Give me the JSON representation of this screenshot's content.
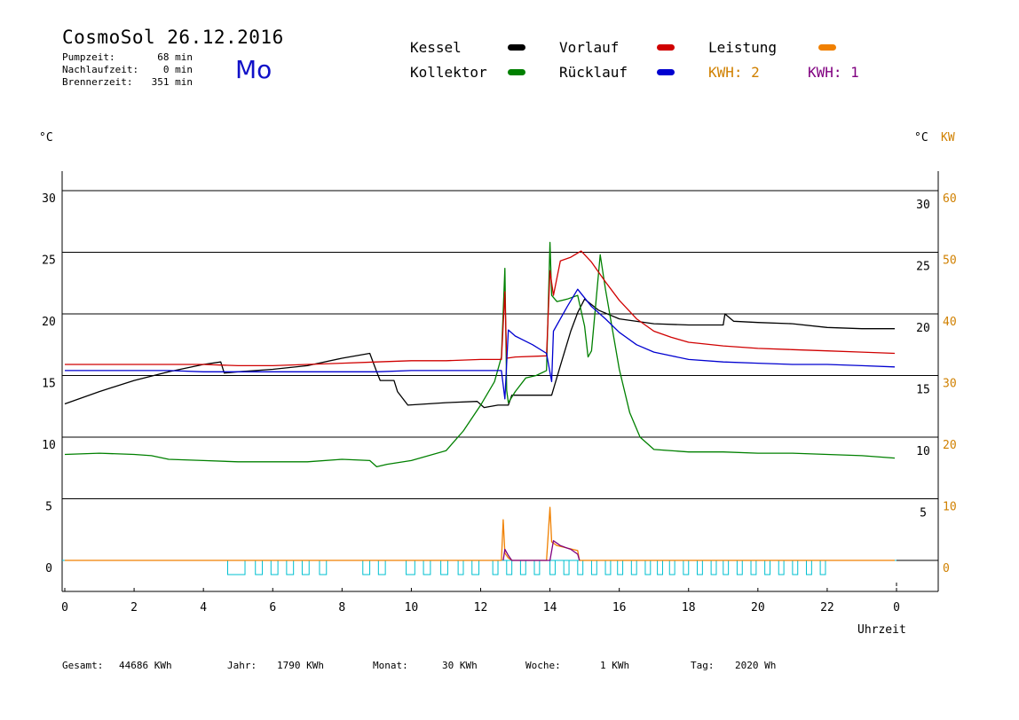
{
  "header": {
    "title": "CosmoSol 26.12.2016",
    "day": "Mo",
    "stats": [
      {
        "label": "Pumpzeit:",
        "value": "68 min"
      },
      {
        "label": "Nachlaufzeit:",
        "value": "0 min"
      },
      {
        "label": "Brennerzeit:",
        "value": "351 min"
      }
    ]
  },
  "legend": {
    "kessel": "Kessel",
    "kollektor": "Kollektor",
    "vorlauf": "Vorlauf",
    "ruecklauf": "Rücklauf",
    "leistung": "Leistung",
    "kwh2": "KWH: 2",
    "kwh1": "KWH: 1"
  },
  "axes": {
    "left_unit": "°C",
    "right_unit_c": "°C",
    "right_unit_kw": "KW",
    "xlabel": "Uhrzeit"
  },
  "colors": {
    "kessel": "#000000",
    "kollektor": "#008000",
    "vorlauf": "#d00000",
    "ruecklauf": "#0000d0",
    "leistung": "#f08000",
    "kwh1": "#800080",
    "pump": "#00c0d0",
    "kw_axis": "#d08000"
  },
  "footer": [
    {
      "label": "Gesamt:",
      "value": "44686 KWh"
    },
    {
      "label": "Jahr:",
      "value": "1790 KWh"
    },
    {
      "label": "Monat:",
      "value": "30 KWh"
    },
    {
      "label": "Woche:",
      "value": "1 KWh"
    },
    {
      "label": "Tag:",
      "value": "2020 Wh"
    }
  ],
  "chart_data": {
    "type": "line",
    "xlabel": "Uhrzeit",
    "ylabel": "°C",
    "xlim": [
      0,
      24
    ],
    "ylim": [
      -2.5,
      33
    ],
    "x_ticks": [
      {
        "v": 0,
        "l": "0"
      },
      {
        "v": 2,
        "l": "2"
      },
      {
        "v": 4,
        "l": "4"
      },
      {
        "v": 6,
        "l": "6"
      },
      {
        "v": 8,
        "l": "8"
      },
      {
        "v": 10,
        "l": "10"
      },
      {
        "v": 12,
        "l": "12"
      },
      {
        "v": 14,
        "l": "14"
      },
      {
        "v": 16,
        "l": "16"
      },
      {
        "v": 18,
        "l": "18"
      },
      {
        "v": 20,
        "l": "20"
      },
      {
        "v": 22,
        "l": "22"
      },
      {
        "v": 24,
        "l": "0"
      }
    ],
    "y_ticks_left": [
      {
        "v": 0,
        "l": "0"
      },
      {
        "v": 5,
        "l": "5"
      },
      {
        "v": 10,
        "l": "10"
      },
      {
        "v": 15,
        "l": "15"
      },
      {
        "v": 20,
        "l": "20"
      },
      {
        "v": 25,
        "l": "25"
      },
      {
        "v": 30,
        "l": "30"
      }
    ],
    "y_ticks_right_c": [
      {
        "v": 5,
        "l": "5"
      },
      {
        "v": 10,
        "l": "10"
      },
      {
        "v": 15,
        "l": "15"
      },
      {
        "v": 20,
        "l": "20"
      },
      {
        "v": 25,
        "l": "25"
      },
      {
        "v": 30,
        "l": "30"
      }
    ],
    "y_ticks_right_kw": [
      {
        "v": 0,
        "l": "0"
      },
      {
        "v": 5,
        "l": "10"
      },
      {
        "v": 10,
        "l": "20"
      },
      {
        "v": 15,
        "l": "30"
      },
      {
        "v": 20,
        "l": "40"
      },
      {
        "v": 25,
        "l": "50"
      },
      {
        "v": 30,
        "l": "60"
      }
    ],
    "gridlines": [
      0,
      5,
      10,
      15,
      20,
      25,
      30
    ],
    "series": [
      {
        "name": "Kessel",
        "color": "#000000",
        "points": [
          [
            0,
            12.7
          ],
          [
            1,
            13.7
          ],
          [
            2,
            14.6
          ],
          [
            3,
            15.3
          ],
          [
            4,
            15.9
          ],
          [
            4.5,
            16.1
          ],
          [
            4.6,
            15.2
          ],
          [
            5,
            15.3
          ],
          [
            6,
            15.5
          ],
          [
            7,
            15.8
          ],
          [
            8,
            16.4
          ],
          [
            8.8,
            16.8
          ],
          [
            9.0,
            15.3
          ],
          [
            9.1,
            14.6
          ],
          [
            9.5,
            14.6
          ],
          [
            9.6,
            13.7
          ],
          [
            9.9,
            12.6
          ],
          [
            11,
            12.8
          ],
          [
            11.9,
            12.9
          ],
          [
            12.1,
            12.4
          ],
          [
            12.5,
            12.6
          ],
          [
            12.8,
            12.6
          ],
          [
            12.9,
            13.4
          ],
          [
            13.9,
            13.4
          ],
          [
            14.05,
            13.4
          ],
          [
            14.3,
            15.8
          ],
          [
            14.6,
            18.6
          ],
          [
            14.8,
            20.1
          ],
          [
            15.0,
            21.2
          ],
          [
            15.4,
            20.3
          ],
          [
            16,
            19.6
          ],
          [
            17,
            19.2
          ],
          [
            18,
            19.1
          ],
          [
            19.0,
            19.1
          ],
          [
            19.05,
            20.0
          ],
          [
            19.3,
            19.4
          ],
          [
            20,
            19.3
          ],
          [
            21,
            19.2
          ],
          [
            22,
            18.9
          ],
          [
            23,
            18.8
          ],
          [
            23.95,
            18.8
          ]
        ]
      },
      {
        "name": "Kollektor",
        "color": "#008000",
        "points": [
          [
            0,
            8.6
          ],
          [
            1,
            8.7
          ],
          [
            2,
            8.6
          ],
          [
            2.5,
            8.5
          ],
          [
            3,
            8.2
          ],
          [
            4,
            8.1
          ],
          [
            5,
            8.0
          ],
          [
            6,
            8.0
          ],
          [
            7,
            8.0
          ],
          [
            8,
            8.2
          ],
          [
            8.8,
            8.1
          ],
          [
            9,
            7.6
          ],
          [
            9.3,
            7.8
          ],
          [
            10,
            8.1
          ],
          [
            11,
            8.9
          ],
          [
            11.5,
            10.5
          ],
          [
            12,
            12.6
          ],
          [
            12.4,
            14.5
          ],
          [
            12.6,
            16.5
          ],
          [
            12.7,
            23.7
          ],
          [
            12.75,
            13.8
          ],
          [
            12.8,
            12.8
          ],
          [
            13,
            13.7
          ],
          [
            13.3,
            14.8
          ],
          [
            13.6,
            15.0
          ],
          [
            13.9,
            15.4
          ],
          [
            14.0,
            25.8
          ],
          [
            14.05,
            21.5
          ],
          [
            14.2,
            21.0
          ],
          [
            14.5,
            21.2
          ],
          [
            14.8,
            21.5
          ],
          [
            15,
            19.0
          ],
          [
            15.1,
            16.5
          ],
          [
            15.2,
            17.0
          ],
          [
            15.45,
            24.8
          ],
          [
            15.6,
            22.0
          ],
          [
            16,
            15.5
          ],
          [
            16.3,
            12.0
          ],
          [
            16.6,
            10.0
          ],
          [
            17,
            9.0
          ],
          [
            18,
            8.8
          ],
          [
            19,
            8.8
          ],
          [
            20,
            8.7
          ],
          [
            21,
            8.7
          ],
          [
            22,
            8.6
          ],
          [
            23,
            8.5
          ],
          [
            23.95,
            8.3
          ]
        ]
      },
      {
        "name": "Vorlauf",
        "color": "#d00000",
        "points": [
          [
            0,
            15.9
          ],
          [
            1,
            15.9
          ],
          [
            2,
            15.9
          ],
          [
            3,
            15.9
          ],
          [
            4,
            15.9
          ],
          [
            5,
            15.8
          ],
          [
            6,
            15.8
          ],
          [
            7,
            15.9
          ],
          [
            8,
            16.0
          ],
          [
            9,
            16.1
          ],
          [
            10,
            16.2
          ],
          [
            11,
            16.2
          ],
          [
            12,
            16.3
          ],
          [
            12.6,
            16.3
          ],
          [
            12.7,
            21.8
          ],
          [
            12.75,
            16.4
          ],
          [
            13,
            16.5
          ],
          [
            13.9,
            16.6
          ],
          [
            14.0,
            23.5
          ],
          [
            14.1,
            21.5
          ],
          [
            14.3,
            24.3
          ],
          [
            14.6,
            24.6
          ],
          [
            14.9,
            25.1
          ],
          [
            15.2,
            24.2
          ],
          [
            15.6,
            22.6
          ],
          [
            16,
            21.1
          ],
          [
            16.5,
            19.6
          ],
          [
            17,
            18.6
          ],
          [
            17.5,
            18.1
          ],
          [
            18,
            17.7
          ],
          [
            19,
            17.4
          ],
          [
            20,
            17.2
          ],
          [
            21,
            17.1
          ],
          [
            22,
            17.0
          ],
          [
            23,
            16.9
          ],
          [
            23.95,
            16.8
          ]
        ]
      },
      {
        "name": "Rücklauf",
        "color": "#0000d0",
        "points": [
          [
            0,
            15.4
          ],
          [
            1,
            15.4
          ],
          [
            2,
            15.4
          ],
          [
            3,
            15.4
          ],
          [
            4,
            15.3
          ],
          [
            5,
            15.3
          ],
          [
            6,
            15.3
          ],
          [
            7,
            15.3
          ],
          [
            8,
            15.3
          ],
          [
            9,
            15.3
          ],
          [
            10,
            15.4
          ],
          [
            11,
            15.4
          ],
          [
            12,
            15.4
          ],
          [
            12.6,
            15.4
          ],
          [
            12.7,
            13.1
          ],
          [
            12.8,
            18.7
          ],
          [
            13,
            18.2
          ],
          [
            13.5,
            17.5
          ],
          [
            13.9,
            16.8
          ],
          [
            14.05,
            14.5
          ],
          [
            14.1,
            18.6
          ],
          [
            14.5,
            20.6
          ],
          [
            14.8,
            22.0
          ],
          [
            15.2,
            20.6
          ],
          [
            15.6,
            19.6
          ],
          [
            16,
            18.5
          ],
          [
            16.5,
            17.5
          ],
          [
            17,
            16.9
          ],
          [
            17.5,
            16.6
          ],
          [
            18,
            16.3
          ],
          [
            19,
            16.1
          ],
          [
            20,
            16.0
          ],
          [
            21,
            15.9
          ],
          [
            22,
            15.9
          ],
          [
            23,
            15.8
          ],
          [
            23.95,
            15.7
          ]
        ]
      },
      {
        "name": "Leistung",
        "color": "#f08000",
        "points": [
          [
            0,
            0
          ],
          [
            12.6,
            0
          ],
          [
            12.65,
            3.3
          ],
          [
            12.7,
            0.6
          ],
          [
            12.8,
            0.2
          ],
          [
            12.9,
            0
          ],
          [
            13.9,
            0
          ],
          [
            14.0,
            4.3
          ],
          [
            14.05,
            1.5
          ],
          [
            14.2,
            1.2
          ],
          [
            14.5,
            1.0
          ],
          [
            14.8,
            0.8
          ],
          [
            14.85,
            0
          ],
          [
            23.95,
            0
          ]
        ]
      },
      {
        "name": "KWH: 1",
        "color": "#800080",
        "points": [
          [
            12.65,
            0
          ],
          [
            12.7,
            0.9
          ],
          [
            12.8,
            0.4
          ],
          [
            12.9,
            0
          ],
          [
            14.0,
            0
          ],
          [
            14.1,
            1.6
          ],
          [
            14.3,
            1.2
          ],
          [
            14.6,
            0.9
          ],
          [
            14.8,
            0.5
          ],
          [
            14.85,
            0
          ]
        ]
      }
    ],
    "pump_intervals": [
      [
        4.7,
        5.2
      ],
      [
        5.5,
        5.7
      ],
      [
        5.95,
        6.15
      ],
      [
        6.4,
        6.6
      ],
      [
        6.85,
        7.05
      ],
      [
        7.35,
        7.55
      ],
      [
        8.6,
        8.8
      ],
      [
        9.05,
        9.25
      ],
      [
        9.85,
        10.1
      ],
      [
        10.35,
        10.55
      ],
      [
        10.85,
        11.05
      ],
      [
        11.35,
        11.5
      ],
      [
        11.75,
        11.95
      ],
      [
        12.35,
        12.5
      ],
      [
        12.75,
        12.9
      ],
      [
        13.15,
        13.3
      ],
      [
        13.55,
        13.7
      ],
      [
        14.0,
        14.15
      ],
      [
        14.4,
        14.55
      ],
      [
        14.8,
        14.95
      ],
      [
        15.2,
        15.35
      ],
      [
        15.6,
        15.75
      ],
      [
        15.95,
        16.1
      ],
      [
        16.35,
        16.5
      ],
      [
        16.75,
        16.9
      ],
      [
        17.1,
        17.25
      ],
      [
        17.45,
        17.6
      ],
      [
        17.85,
        18.0
      ],
      [
        18.25,
        18.4
      ],
      [
        18.65,
        18.8
      ],
      [
        19.0,
        19.15
      ],
      [
        19.4,
        19.55
      ],
      [
        19.8,
        19.95
      ],
      [
        20.2,
        20.35
      ],
      [
        20.6,
        20.75
      ],
      [
        21.0,
        21.15
      ],
      [
        21.4,
        21.55
      ],
      [
        21.8,
        21.95
      ]
    ]
  }
}
